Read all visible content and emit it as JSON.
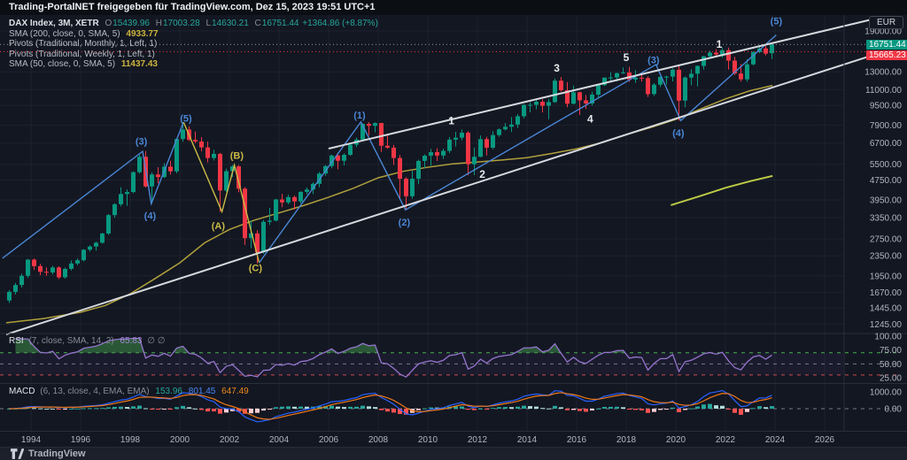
{
  "header": {
    "title": "Trading-PortalNET freigegeben für TradingView.com, Dez 15, 2023 19:51 UTC+1"
  },
  "legend": {
    "symbol_row": {
      "title": "DAX Index, 3M, XETR",
      "o_label": "O",
      "o": "15439.96",
      "h_label": "H",
      "h": "17003.28",
      "l_label": "L",
      "l": "14630.21",
      "c_label": "C",
      "c": "16751.44",
      "change": "+1364.86 (+8.87%)"
    },
    "rows": [
      {
        "label": "SMA (200, close, 0, SMA, 5)",
        "value": "4933.77"
      },
      {
        "label": "Pivots (Traditional, Monthly, 1, Left, 1)",
        "value": ""
      },
      {
        "label": "Pivots (Traditional, Weekly, 1, Left, 1)",
        "value": ""
      },
      {
        "label": "SMA (50, close, 0, SMA, 5)",
        "value": "11437.43"
      }
    ]
  },
  "rsi_legend": {
    "name": "RSI",
    "params": "(7, close, SMA, 14, 2)",
    "value": "65.83",
    "hidden": "∅  ∅"
  },
  "macd_legend": {
    "name": "MACD",
    "params": "(6, 13, close, 4, EMA, EMA)",
    "hist": "153.96",
    "macd": "801.45",
    "signal": "647.49"
  },
  "price_axis": {
    "currency": "EUR",
    "ticks": [
      "19000.00",
      "13000.00",
      "11000.00",
      "9500.00",
      "7900.00",
      "6700.00",
      "5500.00",
      "4750.00",
      "3950.00",
      "3350.00",
      "2750.00",
      "2350.00",
      "1950.00",
      "1670.00",
      "1445.00",
      "1245.00"
    ],
    "price_badge": {
      "value": "16751.44",
      "color": "#089981"
    },
    "pivot_badge": {
      "value": "15665.23",
      "color": "#f23645"
    }
  },
  "rsi_axis": {
    "ticks": [
      "100.00",
      "75.00",
      "50.00",
      "25.00"
    ],
    "tick_values": [
      100,
      75,
      50,
      25
    ]
  },
  "macd_axis": {
    "ticks": [
      "1000.00",
      "0.00"
    ],
    "tick_values": [
      1000,
      0
    ]
  },
  "time_axis": {
    "ticks": [
      "1994",
      "1996",
      "1998",
      "2000",
      "2002",
      "2004",
      "2006",
      "2008",
      "2010",
      "2012",
      "2014",
      "2016",
      "2018",
      "2020",
      "2022",
      "2024",
      "2026"
    ]
  },
  "footer": {
    "brand": "TradingView"
  },
  "colors": {
    "background": "#131722",
    "grid": "#1e222d",
    "axis_text": "#b2b5be",
    "separator": "#2a2e39",
    "up": "#089981",
    "down": "#f23645",
    "rsi": "#9575cd",
    "macd": "#2962ff",
    "signal": "#ef7918",
    "hist_up": "#26a69a",
    "hist_up_weak": "#b2dfdb",
    "hist_down": "#ff5252",
    "hist_down_weak": "#ffcdd2",
    "wave_blue": "#4a86d4",
    "wave_yellow": "#c9ba45",
    "wave_white": "#e8eaed",
    "channel_white": "#d5d8dd",
    "sma50_line": "#b0a03c",
    "sma200_line": "#bcca45",
    "overbought": "#4caf50",
    "oversold": "#d0494f",
    "band_mid": "#787b86",
    "price_line": "#9598a1",
    "pivot_line": "#f23645"
  },
  "chart_data": {
    "type": "candlestick",
    "title": "DAX Index, 3M, XETR",
    "interval": "3M",
    "x_start": 1993.125,
    "x_step": 0.25,
    "x_axis_range": [
      1992.75,
      2028.35
    ],
    "y_axis": {
      "scale": "log",
      "price_range": [
        1130,
        21500
      ]
    },
    "ohlc": [
      [
        1550,
        1705,
        1516,
        1680
      ],
      [
        1680,
        1825,
        1640,
        1790
      ],
      [
        1790,
        1990,
        1750,
        1950
      ],
      [
        1950,
        2280,
        1910,
        2267
      ],
      [
        2267,
        2290,
        2060,
        2133
      ],
      [
        2133,
        2180,
        1960,
        2025
      ],
      [
        2025,
        2110,
        1950,
        2012
      ],
      [
        2012,
        2140,
        1975,
        2107
      ],
      [
        2107,
        2130,
        1891,
        1923
      ],
      [
        1923,
        2105,
        1900,
        2080
      ],
      [
        2080,
        2250,
        2050,
        2187
      ],
      [
        2187,
        2290,
        2150,
        2254
      ],
      [
        2254,
        2500,
        2230,
        2486
      ],
      [
        2486,
        2590,
        2440,
        2561
      ],
      [
        2561,
        2680,
        2460,
        2652
      ],
      [
        2652,
        2910,
        2630,
        2889
      ],
      [
        2889,
        3460,
        2850,
        3429
      ],
      [
        3429,
        3830,
        3350,
        3793
      ],
      [
        3793,
        4438,
        3720,
        4172
      ],
      [
        4172,
        4350,
        3740,
        4250
      ],
      [
        4250,
        5150,
        4200,
        5110
      ],
      [
        5110,
        6010,
        5050,
        5897
      ],
      [
        5897,
        6217,
        4433,
        4475
      ],
      [
        4475,
        5100,
        3811,
        5002
      ],
      [
        5002,
        5350,
        4600,
        4884
      ],
      [
        4884,
        5560,
        4840,
        5379
      ],
      [
        5379,
        5690,
        5000,
        5150
      ],
      [
        5150,
        6992,
        5060,
        6958
      ],
      [
        6958,
        8136,
        6790,
        7599
      ],
      [
        7599,
        7820,
        6830,
        6898
      ],
      [
        6898,
        7450,
        6700,
        6798
      ],
      [
        6798,
        7080,
        6200,
        6434
      ],
      [
        6434,
        6795,
        5590,
        5830
      ],
      [
        5830,
        6290,
        5700,
        6058
      ],
      [
        6058,
        6110,
        3539,
        4308
      ],
      [
        4308,
        5280,
        4250,
        5160
      ],
      [
        5160,
        5470,
        4890,
        5397
      ],
      [
        5397,
        5460,
        4240,
        4383
      ],
      [
        4383,
        4450,
        2598,
        2769
      ],
      [
        2769,
        3260,
        2519,
        2893
      ],
      [
        2893,
        2980,
        2188,
        2424
      ],
      [
        2424,
        3280,
        2390,
        3221
      ],
      [
        3221,
        3670,
        3130,
        3257
      ],
      [
        3257,
        3990,
        3230,
        3965
      ],
      [
        3965,
        4180,
        3690,
        3857
      ],
      [
        3857,
        4140,
        3790,
        4053
      ],
      [
        4053,
        4110,
        3610,
        3893
      ],
      [
        3893,
        4280,
        3820,
        4256
      ],
      [
        4256,
        4430,
        4160,
        4348
      ],
      [
        4348,
        4650,
        4170,
        4586
      ],
      [
        4586,
        5120,
        4440,
        5044
      ],
      [
        5044,
        5460,
        4940,
        5408
      ],
      [
        5408,
        6010,
        5300,
        5970
      ],
      [
        5970,
        6140,
        5250,
        5683
      ],
      [
        5683,
        6090,
        5440,
        6004
      ],
      [
        6004,
        6640,
        5950,
        6597
      ],
      [
        6597,
        7040,
        6450,
        6917
      ],
      [
        6917,
        8040,
        6900,
        8007
      ],
      [
        8007,
        8151,
        7190,
        7861
      ],
      [
        7861,
        8117,
        7410,
        8067
      ],
      [
        8067,
        8080,
        6170,
        6535
      ],
      [
        6535,
        7230,
        6350,
        6418
      ],
      [
        6418,
        6580,
        5470,
        5831
      ],
      [
        5831,
        6000,
        4014,
        4810
      ],
      [
        4810,
        4880,
        3588,
        4085
      ],
      [
        4085,
        5180,
        3990,
        4808
      ],
      [
        4808,
        5740,
        4570,
        5675
      ],
      [
        5675,
        6030,
        5290,
        5957
      ],
      [
        5957,
        6340,
        5430,
        6154
      ],
      [
        6154,
        6390,
        5670,
        5966
      ],
      [
        5966,
        6360,
        5780,
        6229
      ],
      [
        6229,
        7090,
        6100,
        6914
      ],
      [
        6914,
        7440,
        6490,
        7041
      ],
      [
        7041,
        7600,
        6870,
        7376
      ],
      [
        7376,
        7480,
        4966,
        5502
      ],
      [
        5502,
        6430,
        4970,
        5898
      ],
      [
        5898,
        7190,
        5880,
        6947
      ],
      [
        6947,
        7100,
        5970,
        6416
      ],
      [
        6416,
        7480,
        6320,
        7216
      ],
      [
        7216,
        7680,
        7100,
        7612
      ],
      [
        7612,
        8075,
        7520,
        7795
      ],
      [
        7795,
        8530,
        7420,
        7959
      ],
      [
        7959,
        8770,
        7700,
        8594
      ],
      [
        8594,
        9620,
        8420,
        9552
      ],
      [
        9552,
        9795,
        8910,
        9556
      ],
      [
        9556,
        10050,
        9170,
        9833
      ],
      [
        9833,
        10060,
        8900,
        9474
      ],
      [
        9474,
        10090,
        8350,
        9806
      ],
      [
        9806,
        12220,
        9740,
        11966
      ],
      [
        11966,
        12390,
        10800,
        10945
      ],
      [
        10945,
        11810,
        9340,
        9660
      ],
      [
        9660,
        11430,
        9600,
        10743
      ],
      [
        10743,
        10800,
        8699,
        9966
      ],
      [
        9966,
        10470,
        9200,
        9680
      ],
      [
        9680,
        10800,
        9490,
        10511
      ],
      [
        10511,
        11500,
        10170,
        11481
      ],
      [
        11481,
        12320,
        11400,
        12313
      ],
      [
        12313,
        12950,
        11940,
        12325
      ],
      [
        12325,
        12890,
        11870,
        12829
      ],
      [
        12829,
        13530,
        12740,
        12918
      ],
      [
        12918,
        13596,
        11831,
        12097
      ],
      [
        12097,
        13200,
        11730,
        12306
      ],
      [
        12306,
        12890,
        11860,
        12247
      ],
      [
        12247,
        12460,
        10279,
        10559
      ],
      [
        10559,
        11690,
        10390,
        11526
      ],
      [
        11526,
        12440,
        11270,
        12399
      ],
      [
        12399,
        12530,
        11530,
        12428
      ],
      [
        12428,
        13430,
        11880,
        13249
      ],
      [
        13249,
        13795,
        8255,
        9936
      ],
      [
        9936,
        12460,
        9340,
        12311
      ],
      [
        12311,
        13320,
        11450,
        12761
      ],
      [
        12761,
        13795,
        11350,
        13719
      ],
      [
        13719,
        15060,
        13270,
        15008
      ],
      [
        15008,
        15810,
        14820,
        15531
      ],
      [
        15531,
        16030,
        15020,
        15261
      ],
      [
        15261,
        16290,
        14820,
        15885
      ],
      [
        15885,
        16285,
        13270,
        14415
      ],
      [
        14415,
        14930,
        12620,
        12784
      ],
      [
        12784,
        13950,
        11862,
        12114
      ],
      [
        12114,
        14600,
        11850,
        13924
      ],
      [
        13924,
        15706,
        13790,
        15629
      ],
      [
        15629,
        16430,
        15450,
        16148
      ],
      [
        16148,
        16530,
        15140,
        15387
      ],
      [
        15439.96,
        17003.28,
        14630.21,
        16751.44
      ]
    ],
    "sma50_points": [
      [
        1993.0,
        1260
      ],
      [
        1994.5,
        1310
      ],
      [
        1996,
        1390
      ],
      [
        1997,
        1480
      ],
      [
        1998,
        1650
      ],
      [
        1999,
        1900
      ],
      [
        2000,
        2200
      ],
      [
        2001,
        2650
      ],
      [
        2002,
        3000
      ],
      [
        2003,
        3270
      ],
      [
        2004,
        3500
      ],
      [
        2005,
        3750
      ],
      [
        2006,
        4050
      ],
      [
        2007,
        4400
      ],
      [
        2008,
        4850
      ],
      [
        2009,
        5150
      ],
      [
        2010,
        5350
      ],
      [
        2011,
        5520
      ],
      [
        2012,
        5620
      ],
      [
        2013,
        5720
      ],
      [
        2014,
        5850
      ],
      [
        2015,
        6080
      ],
      [
        2016,
        6350
      ],
      [
        2017,
        6720
      ],
      [
        2018,
        7250
      ],
      [
        2019,
        7750
      ],
      [
        2020,
        8350
      ],
      [
        2021,
        9200
      ],
      [
        2022,
        10100
      ],
      [
        2023,
        10900
      ],
      [
        2023.9,
        11437.43
      ]
    ],
    "sma200_points": [
      [
        2019.8,
        3760
      ],
      [
        2021,
        4100
      ],
      [
        2022,
        4420
      ],
      [
        2023,
        4700
      ],
      [
        2023.9,
        4933.77
      ]
    ],
    "price_line": 16751.44,
    "pivot_line": 15665.23,
    "rsi_settings": {
      "length": 7,
      "last_value": 65.83
    },
    "macd_settings": {
      "fast": 6,
      "slow": 13,
      "signal": 4,
      "last_macd": 801.45,
      "last_signal": 647.49,
      "last_hist": 153.96
    },
    "drawings": [
      {
        "name": "impulse-wave-1990s",
        "color_key": "wave_blue",
        "width": 1.4,
        "points": [
          [
            1992.85,
            2295
          ],
          [
            1998.5,
            6200
          ],
          [
            1998.85,
            3811
          ],
          [
            2000.15,
            8136
          ]
        ]
      },
      {
        "name": "abc-correction",
        "color_key": "wave_yellow",
        "width": 1.4,
        "points": [
          [
            2000.15,
            8136
          ],
          [
            2001.7,
            3539
          ],
          [
            2002.2,
            5460
          ],
          [
            2003.2,
            2202
          ]
        ]
      },
      {
        "name": "impulse-wave-2003-2024",
        "color_key": "wave_blue",
        "width": 1.4,
        "points": [
          [
            2003.2,
            2202
          ],
          [
            2007.3,
            8150
          ],
          [
            2009.1,
            3600
          ],
          [
            2019.2,
            13900
          ],
          [
            2020.2,
            8255
          ],
          [
            2024.05,
            18300
          ]
        ]
      },
      {
        "name": "channel-lower",
        "color_key": "channel_white",
        "width": 2,
        "points": [
          [
            1993.0,
            1131
          ],
          [
            2028.2,
            15460
          ]
        ]
      },
      {
        "name": "channel-upper",
        "color_key": "channel_white",
        "width": 2,
        "points": [
          [
            2006.0,
            6360
          ],
          [
            2028.2,
            21480
          ]
        ]
      }
    ],
    "wave_labels": [
      [
        "(3)",
        1998.45,
        6800,
        "wave_blue"
      ],
      [
        "(4)",
        1998.8,
        3400,
        "wave_blue"
      ],
      [
        "(5)",
        2000.25,
        8400,
        "wave_blue"
      ],
      [
        "(A)",
        2001.55,
        3100,
        "wave_yellow"
      ],
      [
        "(B)",
        2002.3,
        5950,
        "wave_yellow"
      ],
      [
        "(C)",
        2003.05,
        2100,
        "wave_yellow"
      ],
      [
        "(1)",
        2007.25,
        8650,
        "wave_blue"
      ],
      [
        "(2)",
        2009.05,
        3200,
        "wave_blue"
      ],
      [
        "1",
        2010.95,
        8200,
        "wave_white"
      ],
      [
        "2",
        2012.2,
        5000,
        "wave_white"
      ],
      [
        "3",
        2015.2,
        13400,
        "wave_white"
      ],
      [
        "4",
        2016.55,
        8350,
        "wave_white"
      ],
      [
        "5",
        2018.0,
        14800,
        "wave_white"
      ],
      [
        "(3)",
        2019.1,
        14500,
        "wave_blue"
      ],
      [
        "(4)",
        2020.1,
        7350,
        "wave_blue"
      ],
      [
        "1",
        2021.75,
        16700,
        "wave_white"
      ],
      [
        "(5)",
        2024.05,
        20800,
        "wave_blue"
      ]
    ]
  }
}
